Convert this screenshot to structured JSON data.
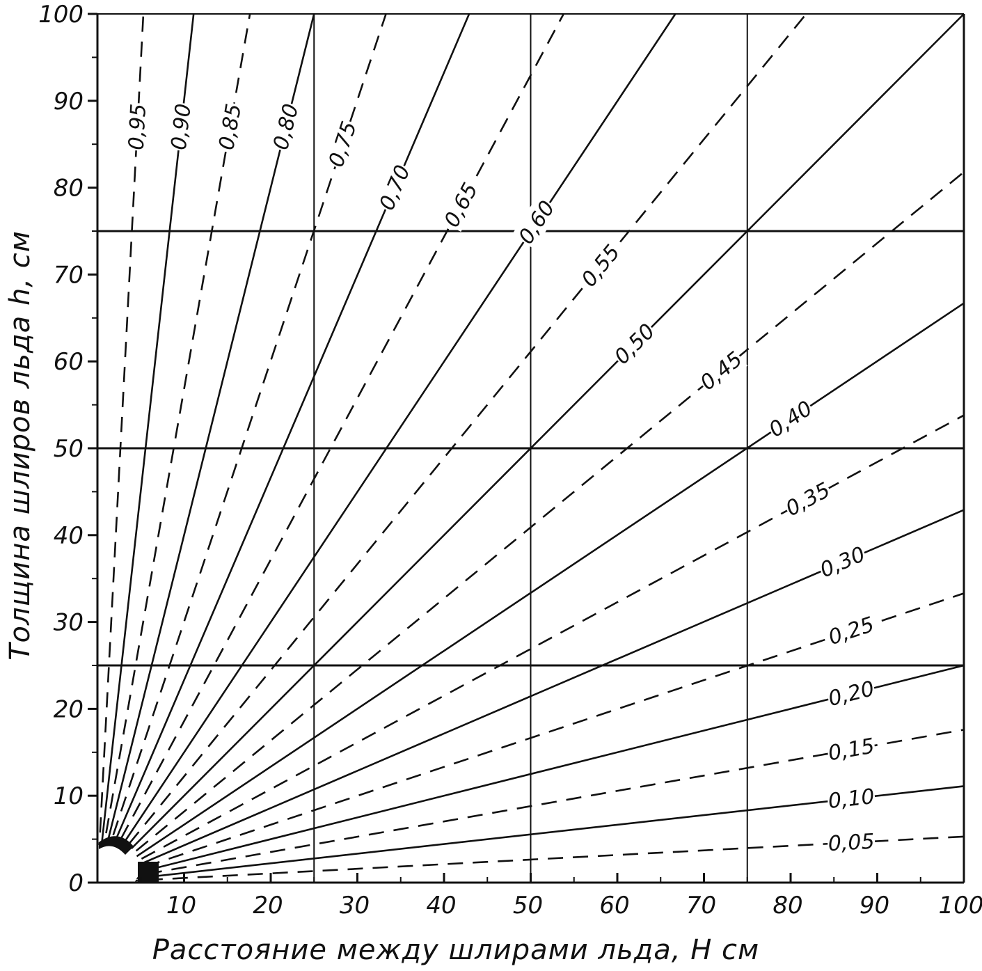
{
  "chart_data": {
    "type": "line",
    "title": "",
    "xlabel": "Расстояние между шлирами льда, Н см",
    "ylabel": "Толщина шлиров льда h, см",
    "xlim": [
      0,
      100
    ],
    "ylim": [
      0,
      100
    ],
    "x_ticks": [
      "10",
      "20",
      "30",
      "40",
      "50",
      "60",
      "70",
      "80",
      "90",
      "100"
    ],
    "y_ticks": [
      "0",
      "10",
      "20",
      "30",
      "40",
      "50",
      "60",
      "70",
      "80",
      "90",
      "100"
    ],
    "grid": "partial",
    "grid_lines": {
      "x": [
        25,
        50,
        75
      ],
      "y": [
        25,
        50,
        75
      ]
    },
    "series": [
      {
        "name": "0,95",
        "style": "dashed",
        "points": [
          [
            0,
            0
          ],
          [
            5.3,
            100
          ]
        ]
      },
      {
        "name": "0,90",
        "style": "solid",
        "points": [
          [
            0,
            0
          ],
          [
            11.1,
            100
          ]
        ]
      },
      {
        "name": "0,85",
        "style": "dashed",
        "points": [
          [
            0,
            0
          ],
          [
            17.6,
            100
          ]
        ]
      },
      {
        "name": "0,80",
        "style": "solid",
        "points": [
          [
            0,
            0
          ],
          [
            25,
            100
          ]
        ]
      },
      {
        "name": "0,75",
        "style": "dashed",
        "points": [
          [
            0,
            0
          ],
          [
            33.3,
            100
          ]
        ]
      },
      {
        "name": "0,70",
        "style": "solid",
        "points": [
          [
            0,
            0
          ],
          [
            42.9,
            100
          ]
        ]
      },
      {
        "name": "0,65",
        "style": "dashed",
        "points": [
          [
            0,
            0
          ],
          [
            53.8,
            100
          ]
        ]
      },
      {
        "name": "0,60",
        "style": "solid",
        "points": [
          [
            0,
            0
          ],
          [
            66.7,
            100
          ]
        ]
      },
      {
        "name": "0,55",
        "style": "dashed",
        "points": [
          [
            0,
            0
          ],
          [
            81.8,
            100
          ]
        ]
      },
      {
        "name": "0,50",
        "style": "solid",
        "points": [
          [
            0,
            0
          ],
          [
            100,
            100
          ]
        ]
      },
      {
        "name": "0,45",
        "style": "dashed",
        "points": [
          [
            0,
            0
          ],
          [
            100,
            81.8
          ]
        ]
      },
      {
        "name": "0,40",
        "style": "solid",
        "points": [
          [
            0,
            0
          ],
          [
            100,
            66.7
          ]
        ]
      },
      {
        "name": "0,35",
        "style": "dashed",
        "points": [
          [
            0,
            0
          ],
          [
            100,
            53.8
          ]
        ]
      },
      {
        "name": "0,30",
        "style": "solid",
        "points": [
          [
            0,
            0
          ],
          [
            100,
            42.9
          ]
        ]
      },
      {
        "name": "0,25",
        "style": "dashed",
        "points": [
          [
            0,
            0
          ],
          [
            100,
            33.3
          ]
        ]
      },
      {
        "name": "0,20",
        "style": "solid",
        "points": [
          [
            0,
            0
          ],
          [
            100,
            25
          ]
        ]
      },
      {
        "name": "0,15",
        "style": "dashed",
        "points": [
          [
            0,
            0
          ],
          [
            100,
            17.6
          ]
        ]
      },
      {
        "name": "0,10",
        "style": "solid",
        "points": [
          [
            0,
            0
          ],
          [
            100,
            11.1
          ]
        ]
      },
      {
        "name": "0,05",
        "style": "dashed",
        "points": [
          [
            0,
            0
          ],
          [
            100,
            5.3
          ]
        ]
      }
    ],
    "colors": {
      "ink": "#111111",
      "background": "#ffffff"
    }
  }
}
